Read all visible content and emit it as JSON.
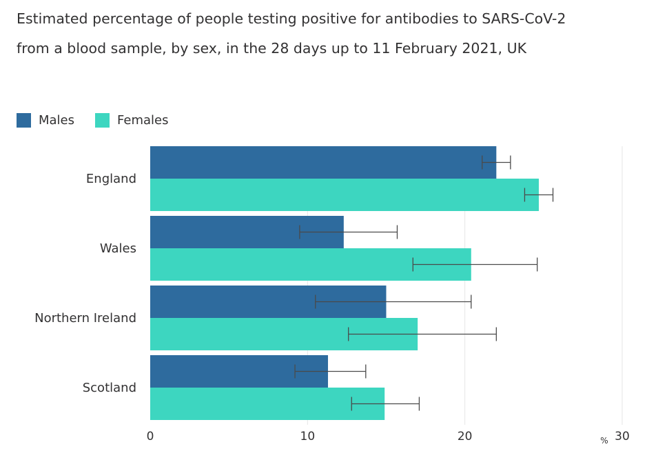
{
  "chart_data": {
    "type": "bar",
    "orientation": "horizontal",
    "title": "Estimated percentage of people testing positive for antibodies to SARS-CoV-2 from a blood sample, by sex, in the 28 days up to 11 February 2021, UK",
    "categories": [
      "England",
      "Wales",
      "Northern Ireland",
      "Scotland"
    ],
    "series": [
      {
        "name": "Males",
        "color": "#2e6b9e",
        "values": [
          22.0,
          12.3,
          15.0,
          11.3
        ],
        "ci_lower": [
          21.1,
          9.5,
          10.5,
          9.2
        ],
        "ci_upper": [
          22.9,
          15.7,
          20.4,
          13.7
        ]
      },
      {
        "name": "Females",
        "color": "#3dd6c0",
        "values": [
          24.7,
          20.4,
          17.0,
          14.9
        ],
        "ci_lower": [
          23.8,
          16.7,
          12.6,
          12.8
        ],
        "ci_upper": [
          25.6,
          24.6,
          22.0,
          17.1
        ]
      }
    ],
    "xlim": [
      0,
      30
    ],
    "xticks": [
      0,
      10,
      20,
      30
    ],
    "xunit": "%",
    "grid": true,
    "legend_position": "top-left"
  }
}
